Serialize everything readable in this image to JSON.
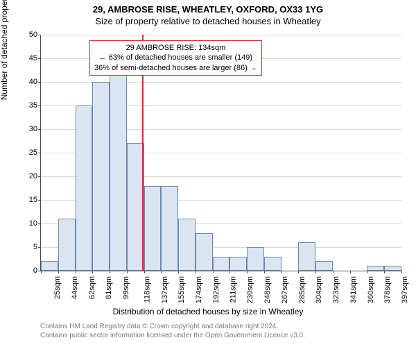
{
  "title": "29, AMBROSE RISE, WHEATLEY, OXFORD, OX33 1YG",
  "subtitle": "Size of property relative to detached houses in Wheatley",
  "xlabel": "Distribution of detached houses by size in Wheatley",
  "ylabel": "Number of detached properties",
  "footer_line1": "Contains HM Land Registry data © Crown copyright and database right 2024.",
  "footer_line2": "Contains public sector information licensed under the Open Government Licence v3.0.",
  "chart": {
    "type": "histogram",
    "ylim": [
      0,
      50
    ],
    "ytick_step": 5,
    "x_tick_labels": [
      "25sqm",
      "44sqm",
      "62sqm",
      "81sqm",
      "99sqm",
      "118sqm",
      "137sqm",
      "155sqm",
      "174sqm",
      "192sqm",
      "211sqm",
      "230sqm",
      "248sqm",
      "267sqm",
      "285sqm",
      "304sqm",
      "323sqm",
      "341sqm",
      "360sqm",
      "378sqm",
      "397sqm"
    ],
    "values": [
      2,
      11,
      35,
      40,
      42,
      27,
      18,
      18,
      11,
      8,
      3,
      3,
      5,
      3,
      0,
      6,
      2,
      0,
      0,
      1,
      1
    ],
    "bar_fill": "#dbe5f1",
    "bar_stroke": "#6a8ab0",
    "background_color": "#ffffff",
    "grid_color": "#d0d8e0",
    "axis_color": "#4a4a4a",
    "marker_color": "#cc3333",
    "marker_bin_index": 5,
    "marker_position_in_bin": 0.89
  },
  "callout": {
    "line1": "29 AMBROSE RISE: 134sqm",
    "line2": "← 63% of detached houses are smaller (149)",
    "line3": "36% of semi-detached houses are larger (86) →"
  }
}
